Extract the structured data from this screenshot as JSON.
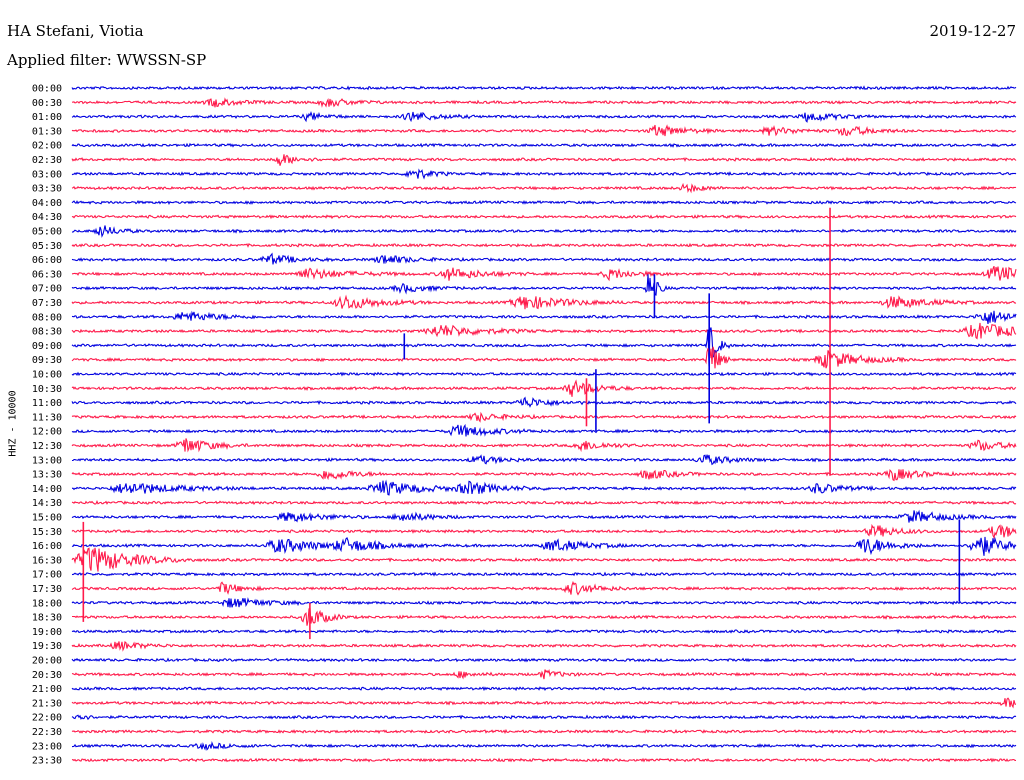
{
  "header": {
    "station": "HA Stefani, Viotia",
    "date": "2019-12-27",
    "filter_label": "Applied filter: WWSSN-SP",
    "channel_label": "HHZ - 10000"
  },
  "chart_data": {
    "type": "line",
    "title": "HA Stefani, Viotia",
    "subtitle": "Applied filter: WWSSN-SP",
    "ylabel": "HHZ - 10000",
    "colors": [
      "#0000e0",
      "#ff1a4a"
    ],
    "rows": [
      "00:00",
      "00:30",
      "01:00",
      "01:30",
      "02:00",
      "02:30",
      "03:00",
      "03:30",
      "04:00",
      "04:30",
      "05:00",
      "05:30",
      "06:00",
      "06:30",
      "07:00",
      "07:30",
      "08:00",
      "08:30",
      "09:00",
      "09:30",
      "10:00",
      "10:30",
      "11:00",
      "11:30",
      "12:00",
      "12:30",
      "13:00",
      "13:30",
      "14:00",
      "14:30",
      "15:00",
      "15:30",
      "16:00",
      "16:30",
      "17:00",
      "17:30",
      "18:00",
      "18:30",
      "19:00",
      "19:30",
      "20:00",
      "20:30",
      "21:00",
      "21:30",
      "22:00",
      "22:30",
      "23:00",
      "23:30"
    ],
    "events": [
      {
        "row": 1,
        "t": 0.15,
        "amp": 4,
        "dur": 0.03
      },
      {
        "row": 1,
        "t": 0.27,
        "amp": 4,
        "dur": 0.03
      },
      {
        "row": 2,
        "t": 0.25,
        "amp": 4,
        "dur": 0.02
      },
      {
        "row": 2,
        "t": 0.36,
        "amp": 5,
        "dur": 0.03
      },
      {
        "row": 2,
        "t": 0.78,
        "amp": 5,
        "dur": 0.03
      },
      {
        "row": 3,
        "t": 0.62,
        "amp": 6,
        "dur": 0.03
      },
      {
        "row": 3,
        "t": 0.74,
        "amp": 4,
        "dur": 0.03
      },
      {
        "row": 3,
        "t": 0.82,
        "amp": 5,
        "dur": 0.03
      },
      {
        "row": 5,
        "t": 0.22,
        "amp": 6,
        "dur": 0.02
      },
      {
        "row": 6,
        "t": 0.36,
        "amp": 7,
        "dur": 0.02
      },
      {
        "row": 7,
        "t": 0.65,
        "amp": 4,
        "dur": 0.02
      },
      {
        "row": 10,
        "t": 0.03,
        "amp": 6,
        "dur": 0.02
      },
      {
        "row": 12,
        "t": 0.21,
        "amp": 5,
        "dur": 0.03
      },
      {
        "row": 12,
        "t": 0.33,
        "amp": 5,
        "dur": 0.03
      },
      {
        "row": 13,
        "t": 0.25,
        "amp": 5,
        "dur": 0.05
      },
      {
        "row": 13,
        "t": 0.4,
        "amp": 6,
        "dur": 0.04
      },
      {
        "row": 13,
        "t": 0.57,
        "amp": 5,
        "dur": 0.03
      },
      {
        "row": 13,
        "t": 0.98,
        "amp": 8,
        "dur": 0.04
      },
      {
        "row": 14,
        "t": 0.61,
        "amp": 18,
        "dur": 0.01
      },
      {
        "row": 14,
        "t": 0.35,
        "amp": 4,
        "dur": 0.03
      },
      {
        "row": 15,
        "t": 0.29,
        "amp": 7,
        "dur": 0.04
      },
      {
        "row": 15,
        "t": 0.48,
        "amp": 7,
        "dur": 0.05
      },
      {
        "row": 15,
        "t": 0.87,
        "amp": 6,
        "dur": 0.04
      },
      {
        "row": 16,
        "t": 0.12,
        "amp": 5,
        "dur": 0.04
      },
      {
        "row": 16,
        "t": 0.97,
        "amp": 7,
        "dur": 0.04
      },
      {
        "row": 17,
        "t": 0.39,
        "amp": 6,
        "dur": 0.05
      },
      {
        "row": 17,
        "t": 0.96,
        "amp": 8,
        "dur": 0.05
      },
      {
        "row": 18,
        "t": 0.675,
        "amp": 22,
        "dur": 0.01
      },
      {
        "row": 19,
        "t": 0.8,
        "amp": 9,
        "dur": 0.04
      },
      {
        "row": 19,
        "t": 0.675,
        "amp": 24,
        "dur": 0.01
      },
      {
        "row": 21,
        "t": 0.53,
        "amp": 8,
        "dur": 0.03
      },
      {
        "row": 22,
        "t": 0.48,
        "amp": 5,
        "dur": 0.03
      },
      {
        "row": 23,
        "t": 0.43,
        "amp": 4,
        "dur": 0.03
      },
      {
        "row": 24,
        "t": 0.41,
        "amp": 6,
        "dur": 0.04
      },
      {
        "row": 25,
        "t": 0.12,
        "amp": 8,
        "dur": 0.03
      },
      {
        "row": 25,
        "t": 0.54,
        "amp": 5,
        "dur": 0.03
      },
      {
        "row": 25,
        "t": 0.96,
        "amp": 5,
        "dur": 0.03
      },
      {
        "row": 26,
        "t": 0.43,
        "amp": 4,
        "dur": 0.03
      },
      {
        "row": 26,
        "t": 0.67,
        "amp": 5,
        "dur": 0.03
      },
      {
        "row": 27,
        "t": 0.27,
        "amp": 6,
        "dur": 0.03
      },
      {
        "row": 27,
        "t": 0.61,
        "amp": 5,
        "dur": 0.03
      },
      {
        "row": 27,
        "t": 0.87,
        "amp": 6,
        "dur": 0.03
      },
      {
        "row": 28,
        "t": 0.06,
        "amp": 6,
        "dur": 0.06
      },
      {
        "row": 28,
        "t": 0.33,
        "amp": 7,
        "dur": 0.05
      },
      {
        "row": 28,
        "t": 0.42,
        "amp": 6,
        "dur": 0.04
      },
      {
        "row": 28,
        "t": 0.79,
        "amp": 5,
        "dur": 0.03
      },
      {
        "row": 30,
        "t": 0.23,
        "amp": 5,
        "dur": 0.04
      },
      {
        "row": 30,
        "t": 0.35,
        "amp": 5,
        "dur": 0.03
      },
      {
        "row": 30,
        "t": 0.89,
        "amp": 6,
        "dur": 0.04
      },
      {
        "row": 31,
        "t": 0.85,
        "amp": 6,
        "dur": 0.03
      },
      {
        "row": 31,
        "t": 0.98,
        "amp": 7,
        "dur": 0.03
      },
      {
        "row": 32,
        "t": 0.22,
        "amp": 7,
        "dur": 0.05
      },
      {
        "row": 32,
        "t": 0.29,
        "amp": 6,
        "dur": 0.04
      },
      {
        "row": 32,
        "t": 0.51,
        "amp": 6,
        "dur": 0.04
      },
      {
        "row": 32,
        "t": 0.84,
        "amp": 9,
        "dur": 0.03
      },
      {
        "row": 32,
        "t": 0.96,
        "amp": 12,
        "dur": 0.03
      },
      {
        "row": 33,
        "t": 0.02,
        "amp": 14,
        "dur": 0.05
      },
      {
        "row": 35,
        "t": 0.16,
        "amp": 6,
        "dur": 0.02
      },
      {
        "row": 35,
        "t": 0.53,
        "amp": 6,
        "dur": 0.03
      },
      {
        "row": 36,
        "t": 0.17,
        "amp": 5,
        "dur": 0.04
      },
      {
        "row": 37,
        "t": 0.25,
        "amp": 12,
        "dur": 0.02
      },
      {
        "row": 39,
        "t": 0.05,
        "amp": 4,
        "dur": 0.03
      },
      {
        "row": 41,
        "t": 0.41,
        "amp": 3,
        "dur": 0.02
      },
      {
        "row": 41,
        "t": 0.5,
        "amp": 4,
        "dur": 0.02
      },
      {
        "row": 43,
        "t": 0.99,
        "amp": 5,
        "dur": 0.02
      },
      {
        "row": 44,
        "t": 0.005,
        "amp": 5,
        "dur": 0.01
      },
      {
        "row": 46,
        "t": 0.14,
        "amp": 3,
        "dur": 0.03
      }
    ],
    "spikes": [
      {
        "row": 14,
        "t": 0.617,
        "up": 14,
        "down": 30
      },
      {
        "row": 18,
        "t": 0.675,
        "up": 52,
        "down": 78
      },
      {
        "row": 19,
        "t": 0.803,
        "up": 152,
        "down": 116
      },
      {
        "row": 18,
        "t": 0.352,
        "up": 12,
        "down": 14
      },
      {
        "row": 21,
        "t": 0.545,
        "up": 10,
        "down": 38
      },
      {
        "row": 33,
        "t": 0.012,
        "up": 38,
        "down": 62
      },
      {
        "row": 32,
        "t": 0.94,
        "up": 26,
        "down": 56
      },
      {
        "row": 37,
        "t": 0.252,
        "up": 14,
        "down": 22
      },
      {
        "row": 24,
        "t": 0.555,
        "up": 62,
        "down": 0
      }
    ]
  }
}
